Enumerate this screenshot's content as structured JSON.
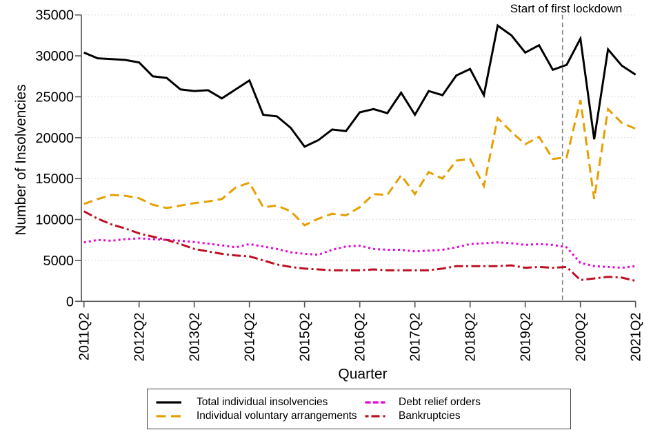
{
  "chart_data": {
    "type": "line",
    "xlabel": "Quarter",
    "ylabel": "Number of Insolvencies",
    "ylim": [
      0,
      35000
    ],
    "ytick_step": 5000,
    "grid": "horizontal-dotted",
    "legend_position": "bottom",
    "x_tick_every": 4,
    "annotation": {
      "label": "Start of first lockdown",
      "x_index": 34.7
    },
    "x_categories": [
      "2011Q2",
      "2011Q3",
      "2011Q4",
      "2012Q1",
      "2012Q2",
      "2012Q3",
      "2012Q4",
      "2013Q1",
      "2013Q2",
      "2013Q3",
      "2013Q4",
      "2014Q1",
      "2014Q2",
      "2014Q3",
      "2014Q4",
      "2015Q1",
      "2015Q2",
      "2015Q3",
      "2015Q4",
      "2016Q1",
      "2016Q2",
      "2016Q3",
      "2016Q4",
      "2017Q1",
      "2017Q2",
      "2017Q3",
      "2017Q4",
      "2018Q1",
      "2018Q2",
      "2018Q3",
      "2018Q4",
      "2019Q1",
      "2019Q2",
      "2019Q3",
      "2019Q4",
      "2020Q1",
      "2020Q2",
      "2020Q3",
      "2020Q4",
      "2021Q1",
      "2021Q2"
    ],
    "series": [
      {
        "name": "Total individual insolvencies",
        "color": "#000000",
        "style": "solid",
        "values": [
          30400,
          29700,
          29600,
          29500,
          29200,
          27500,
          27300,
          25900,
          25700,
          25800,
          24800,
          25900,
          27000,
          22800,
          22600,
          21200,
          18900,
          19700,
          21000,
          20800,
          23100,
          23500,
          23000,
          25500,
          22800,
          25700,
          25200,
          27600,
          28400,
          25200,
          33700,
          32500,
          30400,
          31300,
          28300,
          28900,
          32100,
          19800,
          30800,
          28800,
          27700
        ]
      },
      {
        "name": "Individual voluntary arrangements",
        "color": "#E69F00",
        "style": "dashed",
        "values": [
          11900,
          12500,
          13000,
          12900,
          12600,
          11800,
          11400,
          11700,
          12000,
          12200,
          12500,
          13900,
          14500,
          11500,
          11700,
          11000,
          9300,
          10100,
          10700,
          10500,
          11500,
          13100,
          13000,
          15400,
          13100,
          15800,
          15000,
          17200,
          17400,
          14100,
          22400,
          20700,
          19200,
          20100,
          17400,
          17600,
          24600,
          12500,
          23500,
          21800,
          21100
        ]
      },
      {
        "name": "Debt relief orders",
        "color": "#E606D2",
        "style": "dotted",
        "values": [
          7200,
          7500,
          7400,
          7600,
          7700,
          7600,
          7500,
          7400,
          7250,
          7050,
          6850,
          6600,
          7000,
          6700,
          6400,
          6000,
          5800,
          5700,
          6300,
          6700,
          6800,
          6400,
          6300,
          6300,
          6100,
          6200,
          6300,
          6600,
          7000,
          7100,
          7200,
          7100,
          6900,
          7000,
          6900,
          6600,
          4700,
          4300,
          4200,
          4100,
          4300
        ]
      },
      {
        "name": "Bankruptcies",
        "color": "#BC1022",
        "style": "dashdot",
        "values": [
          11000,
          10100,
          9400,
          8900,
          8300,
          7900,
          7500,
          7000,
          6400,
          6100,
          5800,
          5600,
          5500,
          5000,
          4500,
          4200,
          4000,
          3900,
          3800,
          3800,
          3800,
          3900,
          3800,
          3800,
          3800,
          3800,
          4000,
          4300,
          4300,
          4300,
          4300,
          4400,
          4100,
          4200,
          4100,
          4200,
          2600,
          2800,
          3000,
          2900,
          2500
        ]
      }
    ]
  }
}
